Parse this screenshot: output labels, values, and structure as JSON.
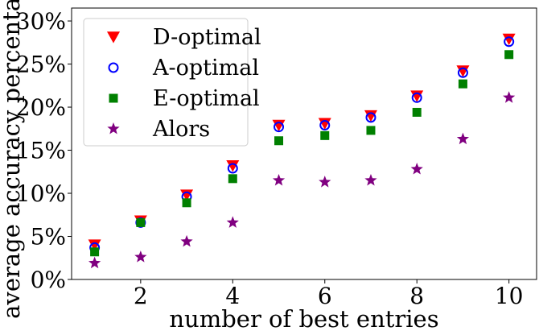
{
  "chart_data": {
    "type": "scatter",
    "xlabel": "number of best entries",
    "ylabel": "average accuracy percentage",
    "xlim": [
      0.5,
      10.6
    ],
    "ylim": [
      0,
      31.5
    ],
    "xticks": [
      2,
      4,
      6,
      8,
      10
    ],
    "xtick_labels": [
      "2",
      "4",
      "6",
      "8",
      "10"
    ],
    "yticks": [
      0,
      5,
      10,
      15,
      20,
      25,
      30
    ],
    "ytick_labels": [
      "0%",
      "5%",
      "10%",
      "15%",
      "20%",
      "25%",
      "30%"
    ],
    "legend_position": "top-left",
    "x": [
      1,
      2,
      3,
      4,
      5,
      6,
      7,
      8,
      9,
      10
    ],
    "series": [
      {
        "name": "D-optimal",
        "marker": "triangle-down",
        "color": "#ff0000",
        "values": [
          4.0,
          6.8,
          9.8,
          13.2,
          17.9,
          18.1,
          19.0,
          21.3,
          24.2,
          27.9
        ]
      },
      {
        "name": "A-optimal",
        "marker": "hollow-circle",
        "color": "#0000ff",
        "values": [
          3.7,
          6.6,
          9.6,
          12.9,
          17.7,
          17.9,
          18.8,
          21.1,
          24.0,
          27.6
        ]
      },
      {
        "name": "E-optimal",
        "marker": "square",
        "color": "#008000",
        "values": [
          3.2,
          6.6,
          8.9,
          11.7,
          16.1,
          16.7,
          17.3,
          19.4,
          22.7,
          26.1
        ]
      },
      {
        "name": "Alors",
        "marker": "star",
        "color": "#800080",
        "values": [
          1.9,
          2.6,
          4.4,
          6.6,
          11.5,
          11.3,
          11.5,
          12.8,
          16.3,
          21.1
        ]
      }
    ]
  }
}
